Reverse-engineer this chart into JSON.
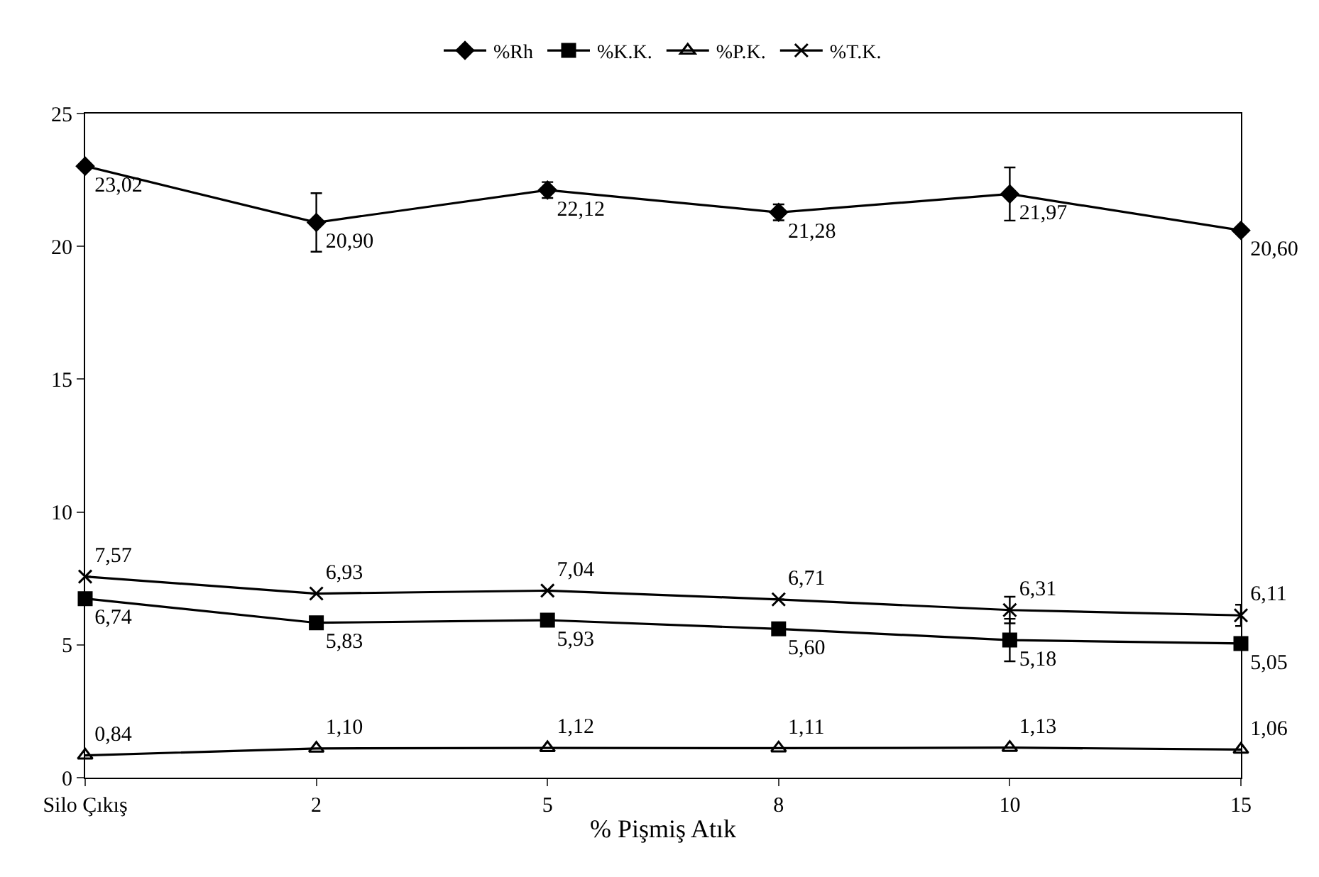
{
  "chart_data": {
    "type": "line",
    "xlabel": "% Pişmiş Atık",
    "categories": [
      "Silo Çıkış",
      "2",
      "5",
      "8",
      "10",
      "15"
    ],
    "ylim": [
      0,
      25
    ],
    "yticks": [
      0,
      5,
      10,
      15,
      20,
      25
    ],
    "legend": "top",
    "series": [
      {
        "name": "%Rh",
        "color": "#000000",
        "marker": "diamond",
        "values": [
          23.02,
          20.9,
          22.12,
          21.28,
          21.97,
          20.6
        ],
        "value_labels": [
          "23,02",
          "20,90",
          "22,12",
          "21,28",
          "21,97",
          "20,60"
        ],
        "errors": [
          null,
          1.1,
          0.3,
          0.3,
          1.0,
          null
        ]
      },
      {
        "name": "%K.K.",
        "color": "#000000",
        "marker": "square",
        "values": [
          6.74,
          5.83,
          5.93,
          5.6,
          5.18,
          5.05
        ],
        "value_labels": [
          "6,74",
          "5,83",
          "5,93",
          "5,60",
          "5,18",
          "5,05"
        ],
        "errors": [
          null,
          null,
          null,
          null,
          0.8,
          null
        ]
      },
      {
        "name": "%P.K.",
        "color": "#000000",
        "marker": "triangle",
        "values": [
          0.84,
          1.1,
          1.12,
          1.11,
          1.13,
          1.06
        ],
        "value_labels": [
          "0,84",
          "1,10",
          "1,12",
          "1,11",
          "1,13",
          "1,06"
        ]
      },
      {
        "name": "%T.K.",
        "color": "#000000",
        "marker": "cross",
        "values": [
          7.57,
          6.93,
          7.04,
          6.71,
          6.31,
          6.11
        ],
        "value_labels": [
          "7,57",
          "6,93",
          "7,04",
          "6,71",
          "6,31",
          "6,11"
        ],
        "errors": [
          null,
          null,
          null,
          null,
          0.5,
          0.4
        ]
      }
    ]
  }
}
